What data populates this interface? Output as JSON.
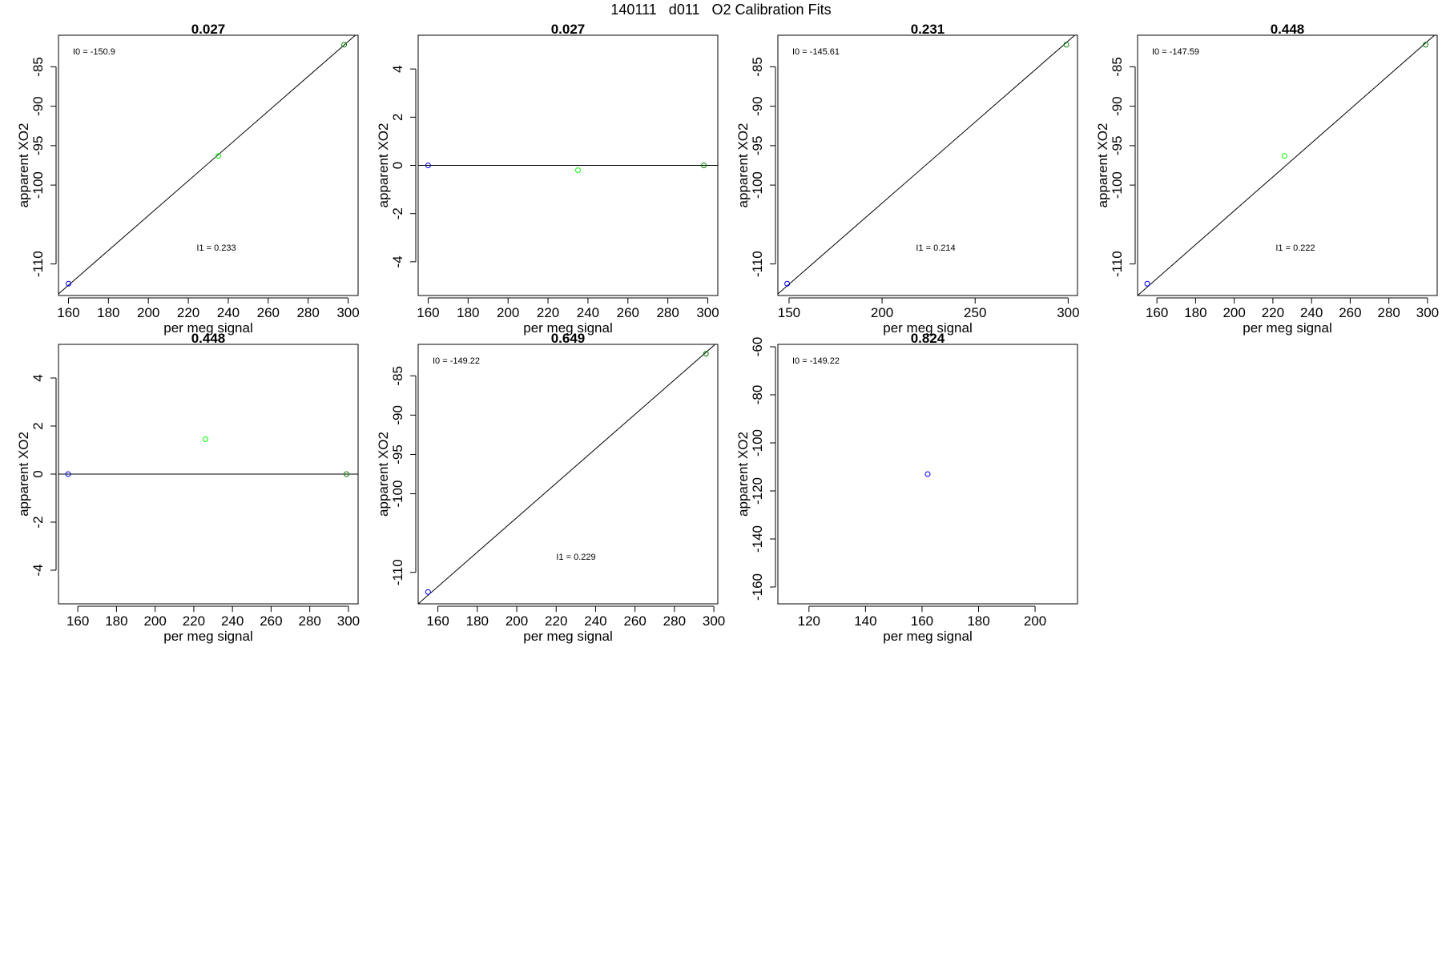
{
  "figure": {
    "title": "140111   d011   O2 Calibration Fits"
  },
  "chart_data": [
    {
      "type": "scatter",
      "title": "0.027",
      "xlabel": "per meg signal",
      "ylabel": "apparent XO2",
      "xlim": [
        155,
        305
      ],
      "ylim": [
        -114,
        -81
      ],
      "xticks": [
        160,
        180,
        200,
        220,
        240,
        260,
        280,
        300
      ],
      "yticks": [
        -110,
        -100,
        -95,
        -90,
        -85
      ],
      "points": [
        {
          "x": 160,
          "y": -112.5,
          "color": "#0000ff"
        },
        {
          "x": 235,
          "y": -96.3,
          "color": "#00ff00"
        },
        {
          "x": 298,
          "y": -82.2,
          "color": "#008000"
        }
      ],
      "fit_line": [
        [
          155,
          -113.8
        ],
        [
          305,
          -80.7
        ]
      ],
      "annotations": [
        "I0 =  -150.9",
        "I1 =  0.233"
      ]
    },
    {
      "type": "scatter",
      "title": "0.027",
      "xlabel": "per meg signal",
      "ylabel": "apparent XO2",
      "xlim": [
        155,
        305
      ],
      "ylim": [
        -5.4,
        5.4
      ],
      "xticks": [
        160,
        180,
        200,
        220,
        240,
        260,
        280,
        300
      ],
      "yticks": [
        -4,
        -2,
        0,
        2,
        4
      ],
      "points": [
        {
          "x": 160,
          "y": 0,
          "color": "#0000ff"
        },
        {
          "x": 235,
          "y": -0.2,
          "color": "#00ff00"
        },
        {
          "x": 298,
          "y": 0,
          "color": "#008000"
        }
      ],
      "fit_line": [
        [
          155,
          0
        ],
        [
          305,
          0
        ]
      ],
      "annotations": []
    },
    {
      "type": "scatter",
      "title": "0.231",
      "xlabel": "per meg signal",
      "ylabel": "apparent XO2",
      "xlim": [
        144,
        305
      ],
      "ylim": [
        -114,
        -81
      ],
      "xticks": [
        150,
        200,
        250,
        300
      ],
      "yticks": [
        -110,
        -100,
        -95,
        -90,
        -85
      ],
      "points": [
        {
          "x": 149,
          "y": -112.5,
          "color": "#0000ff"
        },
        {
          "x": 299,
          "y": -82.2,
          "color": "#008000"
        }
      ],
      "fit_line": [
        [
          144,
          -113.8
        ],
        [
          305,
          -80.7
        ]
      ],
      "annotations": [
        "I0 =  -145.61",
        "I1 =  0.214"
      ]
    },
    {
      "type": "scatter",
      "title": "0.448",
      "xlabel": "per meg signal",
      "ylabel": "apparent XO2",
      "xlim": [
        150,
        305
      ],
      "ylim": [
        -114,
        -81
      ],
      "xticks": [
        160,
        180,
        200,
        220,
        240,
        260,
        280,
        300
      ],
      "yticks": [
        -110,
        -100,
        -95,
        -90,
        -85
      ],
      "points": [
        {
          "x": 155,
          "y": -112.5,
          "color": "#0000ff"
        },
        {
          "x": 226,
          "y": -96.3,
          "color": "#00ff00"
        },
        {
          "x": 299,
          "y": -82.2,
          "color": "#008000"
        }
      ],
      "fit_line": [
        [
          150,
          -114
        ],
        [
          305,
          -80.7
        ]
      ],
      "annotations": [
        "I0 =  -147.59",
        "I1 =  0.222"
      ]
    },
    {
      "type": "scatter",
      "title": "0.448",
      "xlabel": "per meg signal",
      "ylabel": "apparent XO2",
      "xlim": [
        150,
        305
      ],
      "ylim": [
        -5.4,
        5.4
      ],
      "xticks": [
        160,
        180,
        200,
        220,
        240,
        260,
        280,
        300
      ],
      "yticks": [
        -4,
        -2,
        0,
        2,
        4
      ],
      "points": [
        {
          "x": 155,
          "y": 0,
          "color": "#0000ff"
        },
        {
          "x": 226,
          "y": 1.45,
          "color": "#00ff00"
        },
        {
          "x": 299,
          "y": 0,
          "color": "#008000"
        }
      ],
      "fit_line": [
        [
          150,
          0
        ],
        [
          305,
          0
        ]
      ],
      "annotations": []
    },
    {
      "type": "scatter",
      "title": "0.649",
      "xlabel": "per meg signal",
      "ylabel": "apparent XO2",
      "xlim": [
        150,
        302
      ],
      "ylim": [
        -114,
        -81
      ],
      "xticks": [
        160,
        180,
        200,
        220,
        240,
        260,
        280,
        300
      ],
      "yticks": [
        -110,
        -100,
        -95,
        -90,
        -85
      ],
      "points": [
        {
          "x": 155,
          "y": -112.5,
          "color": "#0000ff"
        },
        {
          "x": 296,
          "y": -82.2,
          "color": "#008000"
        }
      ],
      "fit_line": [
        [
          150,
          -114
        ],
        [
          302,
          -80.7
        ]
      ],
      "annotations": [
        "I0 =  -149.22",
        "I1 =  0.229"
      ]
    },
    {
      "type": "scatter",
      "title": "0.824",
      "xlabel": "per meg signal",
      "ylabel": "apparent XO2",
      "xlim": [
        109,
        215
      ],
      "ylim": [
        -167,
        -59
      ],
      "xticks": [
        120,
        140,
        160,
        180,
        200
      ],
      "yticks": [
        -160,
        -140,
        -120,
        -100,
        -80,
        -60
      ],
      "points": [
        {
          "x": 162,
          "y": -113,
          "color": "#0000ff"
        }
      ],
      "fit_line": [],
      "annotations": [
        "I0 =  -149.22"
      ]
    }
  ]
}
